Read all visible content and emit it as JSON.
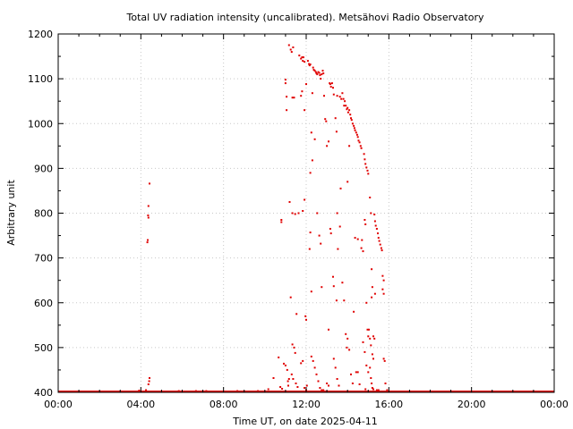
{
  "chart_data": {
    "type": "scatter",
    "title": "Total UV radiation intensity (uncalibrated). Metsähovi Radio Observatory",
    "xlabel": "Time UT, on date 2025-04-11",
    "ylabel": "Arbitrary unit",
    "xlim": [
      "00:00",
      "24:00"
    ],
    "ylim": [
      400,
      1200
    ],
    "x_ticks": [
      "00:00",
      "04:00",
      "08:00",
      "12:00",
      "16:00",
      "20:00",
      "00:00"
    ],
    "y_ticks": [
      "400",
      "500",
      "600",
      "700",
      "800",
      "900",
      "1000",
      "1100",
      "1200"
    ],
    "grid": true,
    "marker_color": "#e00000",
    "series": [
      {
        "baseline_value": 402,
        "baseline_x_range": [
          "00:00",
          "24:00"
        ],
        "points": [
          [
            "04:25",
            866
          ],
          [
            "04:22",
            816
          ],
          [
            "04:21",
            795
          ],
          [
            "04:22",
            790
          ],
          [
            "04:20",
            740
          ],
          [
            "04:19",
            735
          ],
          [
            "04:25",
            432
          ],
          [
            "04:24",
            425
          ],
          [
            "04:22",
            418
          ],
          [
            "04:15",
            405
          ],
          [
            "03:55",
            404
          ],
          [
            "05:50",
            403
          ],
          [
            "06:40",
            403
          ],
          [
            "07:10",
            403
          ],
          [
            "08:40",
            403
          ],
          [
            "09:40",
            403
          ],
          [
            "10:10",
            407
          ],
          [
            "10:25",
            432
          ],
          [
            "10:40",
            478
          ],
          [
            "10:45",
            412
          ],
          [
            "10:50",
            408
          ],
          [
            "10:55",
            464
          ],
          [
            "10:48",
            785
          ],
          [
            "10:48",
            780
          ],
          [
            "11:00",
            1098
          ],
          [
            "11:00",
            1090
          ],
          [
            "11:03",
            1060
          ],
          [
            "11:03",
            1030
          ],
          [
            "11:00",
            460
          ],
          [
            "11:05",
            450
          ],
          [
            "11:07",
            425
          ],
          [
            "11:08",
            415
          ],
          [
            "11:10",
            430
          ],
          [
            "11:10",
            1175
          ],
          [
            "11:15",
            1165
          ],
          [
            "11:18",
            1160
          ],
          [
            "11:22",
            1170
          ],
          [
            "11:25",
            1058
          ],
          [
            "11:20",
            1058
          ],
          [
            "11:12",
            825
          ],
          [
            "11:20",
            800
          ],
          [
            "11:28",
            798
          ],
          [
            "11:15",
            612
          ],
          [
            "11:20",
            507
          ],
          [
            "11:25",
            500
          ],
          [
            "11:18",
            440
          ],
          [
            "11:22",
            430
          ],
          [
            "11:30",
            420
          ],
          [
            "11:35",
            412
          ],
          [
            "11:28",
            488
          ],
          [
            "11:32",
            575
          ],
          [
            "11:38",
            800
          ],
          [
            "11:40",
            1152
          ],
          [
            "11:45",
            1145
          ],
          [
            "11:48",
            1148
          ],
          [
            "11:50",
            1140
          ],
          [
            "11:45",
            1062
          ],
          [
            "11:48",
            1072
          ],
          [
            "11:52",
            1148
          ],
          [
            "11:55",
            1138
          ],
          [
            "11:55",
            1030
          ],
          [
            "11:50",
            805
          ],
          [
            "11:55",
            830
          ],
          [
            "11:58",
            570
          ],
          [
            "12:00",
            562
          ],
          [
            "11:45",
            465
          ],
          [
            "11:50",
            470
          ],
          [
            "11:55",
            410
          ],
          [
            "12:00",
            405
          ],
          [
            "12:02",
            415
          ],
          [
            "12:05",
            1140
          ],
          [
            "12:08",
            1133
          ],
          [
            "12:10",
            1130
          ],
          [
            "12:12",
            1132
          ],
          [
            "12:00",
            1088
          ],
          [
            "12:12",
            890
          ],
          [
            "12:12",
            757
          ],
          [
            "12:10",
            720
          ],
          [
            "12:15",
            980
          ],
          [
            "12:18",
            918
          ],
          [
            "12:15",
            625
          ],
          [
            "12:18",
            1068
          ],
          [
            "12:20",
            1125
          ],
          [
            "12:22",
            1120
          ],
          [
            "12:25",
            1118
          ],
          [
            "12:28",
            1115
          ],
          [
            "12:30",
            1112
          ],
          [
            "12:32",
            1110
          ],
          [
            "12:35",
            1115
          ],
          [
            "12:38",
            1113
          ],
          [
            "12:40",
            1108
          ],
          [
            "12:42",
            1100
          ],
          [
            "12:45",
            1110
          ],
          [
            "12:48",
            1118
          ],
          [
            "12:50",
            1112
          ],
          [
            "12:25",
            965
          ],
          [
            "12:32",
            800
          ],
          [
            "12:38",
            750
          ],
          [
            "12:42",
            732
          ],
          [
            "12:45",
            635
          ],
          [
            "12:15",
            480
          ],
          [
            "12:20",
            470
          ],
          [
            "12:25",
            455
          ],
          [
            "12:30",
            440
          ],
          [
            "12:35",
            425
          ],
          [
            "12:40",
            410
          ],
          [
            "12:45",
            405
          ],
          [
            "12:50",
            405
          ],
          [
            "12:52",
            1062
          ],
          [
            "12:55",
            1010
          ],
          [
            "12:58",
            1005
          ],
          [
            "13:00",
            950
          ],
          [
            "13:05",
            960
          ],
          [
            "13:05",
            540
          ],
          [
            "13:00",
            420
          ],
          [
            "13:05",
            415
          ],
          [
            "13:08",
            1090
          ],
          [
            "13:10",
            1088
          ],
          [
            "13:12",
            1082
          ],
          [
            "13:15",
            1090
          ],
          [
            "13:18",
            1080
          ],
          [
            "13:20",
            1065
          ],
          [
            "13:10",
            765
          ],
          [
            "13:12",
            755
          ],
          [
            "13:18",
            658
          ],
          [
            "13:20",
            637
          ],
          [
            "13:25",
            1012
          ],
          [
            "13:28",
            982
          ],
          [
            "13:30",
            1062
          ],
          [
            "13:30",
            800
          ],
          [
            "13:32",
            720
          ],
          [
            "13:28",
            605
          ],
          [
            "13:20",
            475
          ],
          [
            "13:25",
            455
          ],
          [
            "13:30",
            430
          ],
          [
            "13:35",
            415
          ],
          [
            "13:38",
            1060
          ],
          [
            "13:42",
            1055
          ],
          [
            "13:45",
            1068
          ],
          [
            "13:48",
            1055
          ],
          [
            "13:50",
            1040
          ],
          [
            "13:52",
            1050
          ],
          [
            "13:38",
            770
          ],
          [
            "13:40",
            855
          ],
          [
            "13:45",
            645
          ],
          [
            "13:50",
            605
          ],
          [
            "13:55",
            1040
          ],
          [
            "13:58",
            1032
          ],
          [
            "14:00",
            1035
          ],
          [
            "14:02",
            1025
          ],
          [
            "14:05",
            1030
          ],
          [
            "14:08",
            1020
          ],
          [
            "14:10",
            1012
          ],
          [
            "14:12",
            1008
          ],
          [
            "14:15",
            1000
          ],
          [
            "14:18",
            995
          ],
          [
            "14:00",
            870
          ],
          [
            "14:05",
            950
          ],
          [
            "13:55",
            530
          ],
          [
            "14:00",
            520
          ],
          [
            "14:05",
            495
          ],
          [
            "14:10",
            440
          ],
          [
            "14:15",
            420
          ],
          [
            "13:58",
            500
          ],
          [
            "14:20",
            990
          ],
          [
            "14:22",
            985
          ],
          [
            "14:25",
            980
          ],
          [
            "14:28",
            975
          ],
          [
            "14:30",
            970
          ],
          [
            "14:32",
            962
          ],
          [
            "14:35",
            958
          ],
          [
            "14:38",
            950
          ],
          [
            "14:40",
            945
          ],
          [
            "14:18",
            580
          ],
          [
            "14:22",
            745
          ],
          [
            "14:30",
            742
          ],
          [
            "14:25",
            445
          ],
          [
            "14:30",
            445
          ],
          [
            "14:35",
            418
          ],
          [
            "14:40",
            722
          ],
          [
            "14:42",
            740
          ],
          [
            "14:45",
            715
          ],
          [
            "14:48",
            932
          ],
          [
            "14:50",
            920
          ],
          [
            "14:52",
            910
          ],
          [
            "14:55",
            902
          ],
          [
            "14:58",
            895
          ],
          [
            "15:00",
            888
          ],
          [
            "14:50",
            785
          ],
          [
            "14:52",
            775
          ],
          [
            "14:55",
            600
          ],
          [
            "14:58",
            540
          ],
          [
            "15:00",
            525
          ],
          [
            "14:45",
            512
          ],
          [
            "14:50",
            490
          ],
          [
            "14:55",
            460
          ],
          [
            "15:00",
            445
          ],
          [
            "14:52",
            407
          ],
          [
            "15:02",
            540
          ],
          [
            "15:05",
            835
          ],
          [
            "15:08",
            800
          ],
          [
            "15:10",
            675
          ],
          [
            "15:12",
            635
          ],
          [
            "15:10",
            612
          ],
          [
            "15:05",
            520
          ],
          [
            "15:08",
            505
          ],
          [
            "15:12",
            485
          ],
          [
            "15:15",
            475
          ],
          [
            "15:15",
            525
          ],
          [
            "15:18",
            520
          ],
          [
            "15:05",
            455
          ],
          [
            "15:08",
            432
          ],
          [
            "15:10",
            420
          ],
          [
            "15:12",
            410
          ],
          [
            "15:15",
            407
          ],
          [
            "15:18",
            797
          ],
          [
            "15:20",
            782
          ],
          [
            "15:22",
            772
          ],
          [
            "15:25",
            765
          ],
          [
            "15:28",
            755
          ],
          [
            "15:30",
            745
          ],
          [
            "15:32",
            738
          ],
          [
            "15:35",
            730
          ],
          [
            "15:38",
            722
          ],
          [
            "15:40",
            717
          ],
          [
            "15:20",
            620
          ],
          [
            "15:25",
            405
          ],
          [
            "15:30",
            405
          ],
          [
            "15:42",
            660
          ],
          [
            "15:45",
            650
          ],
          [
            "15:42",
            630
          ],
          [
            "15:45",
            620
          ],
          [
            "15:45",
            475
          ],
          [
            "15:48",
            470
          ],
          [
            "15:50",
            420
          ],
          [
            "15:55",
            405
          ]
        ]
      }
    ]
  }
}
